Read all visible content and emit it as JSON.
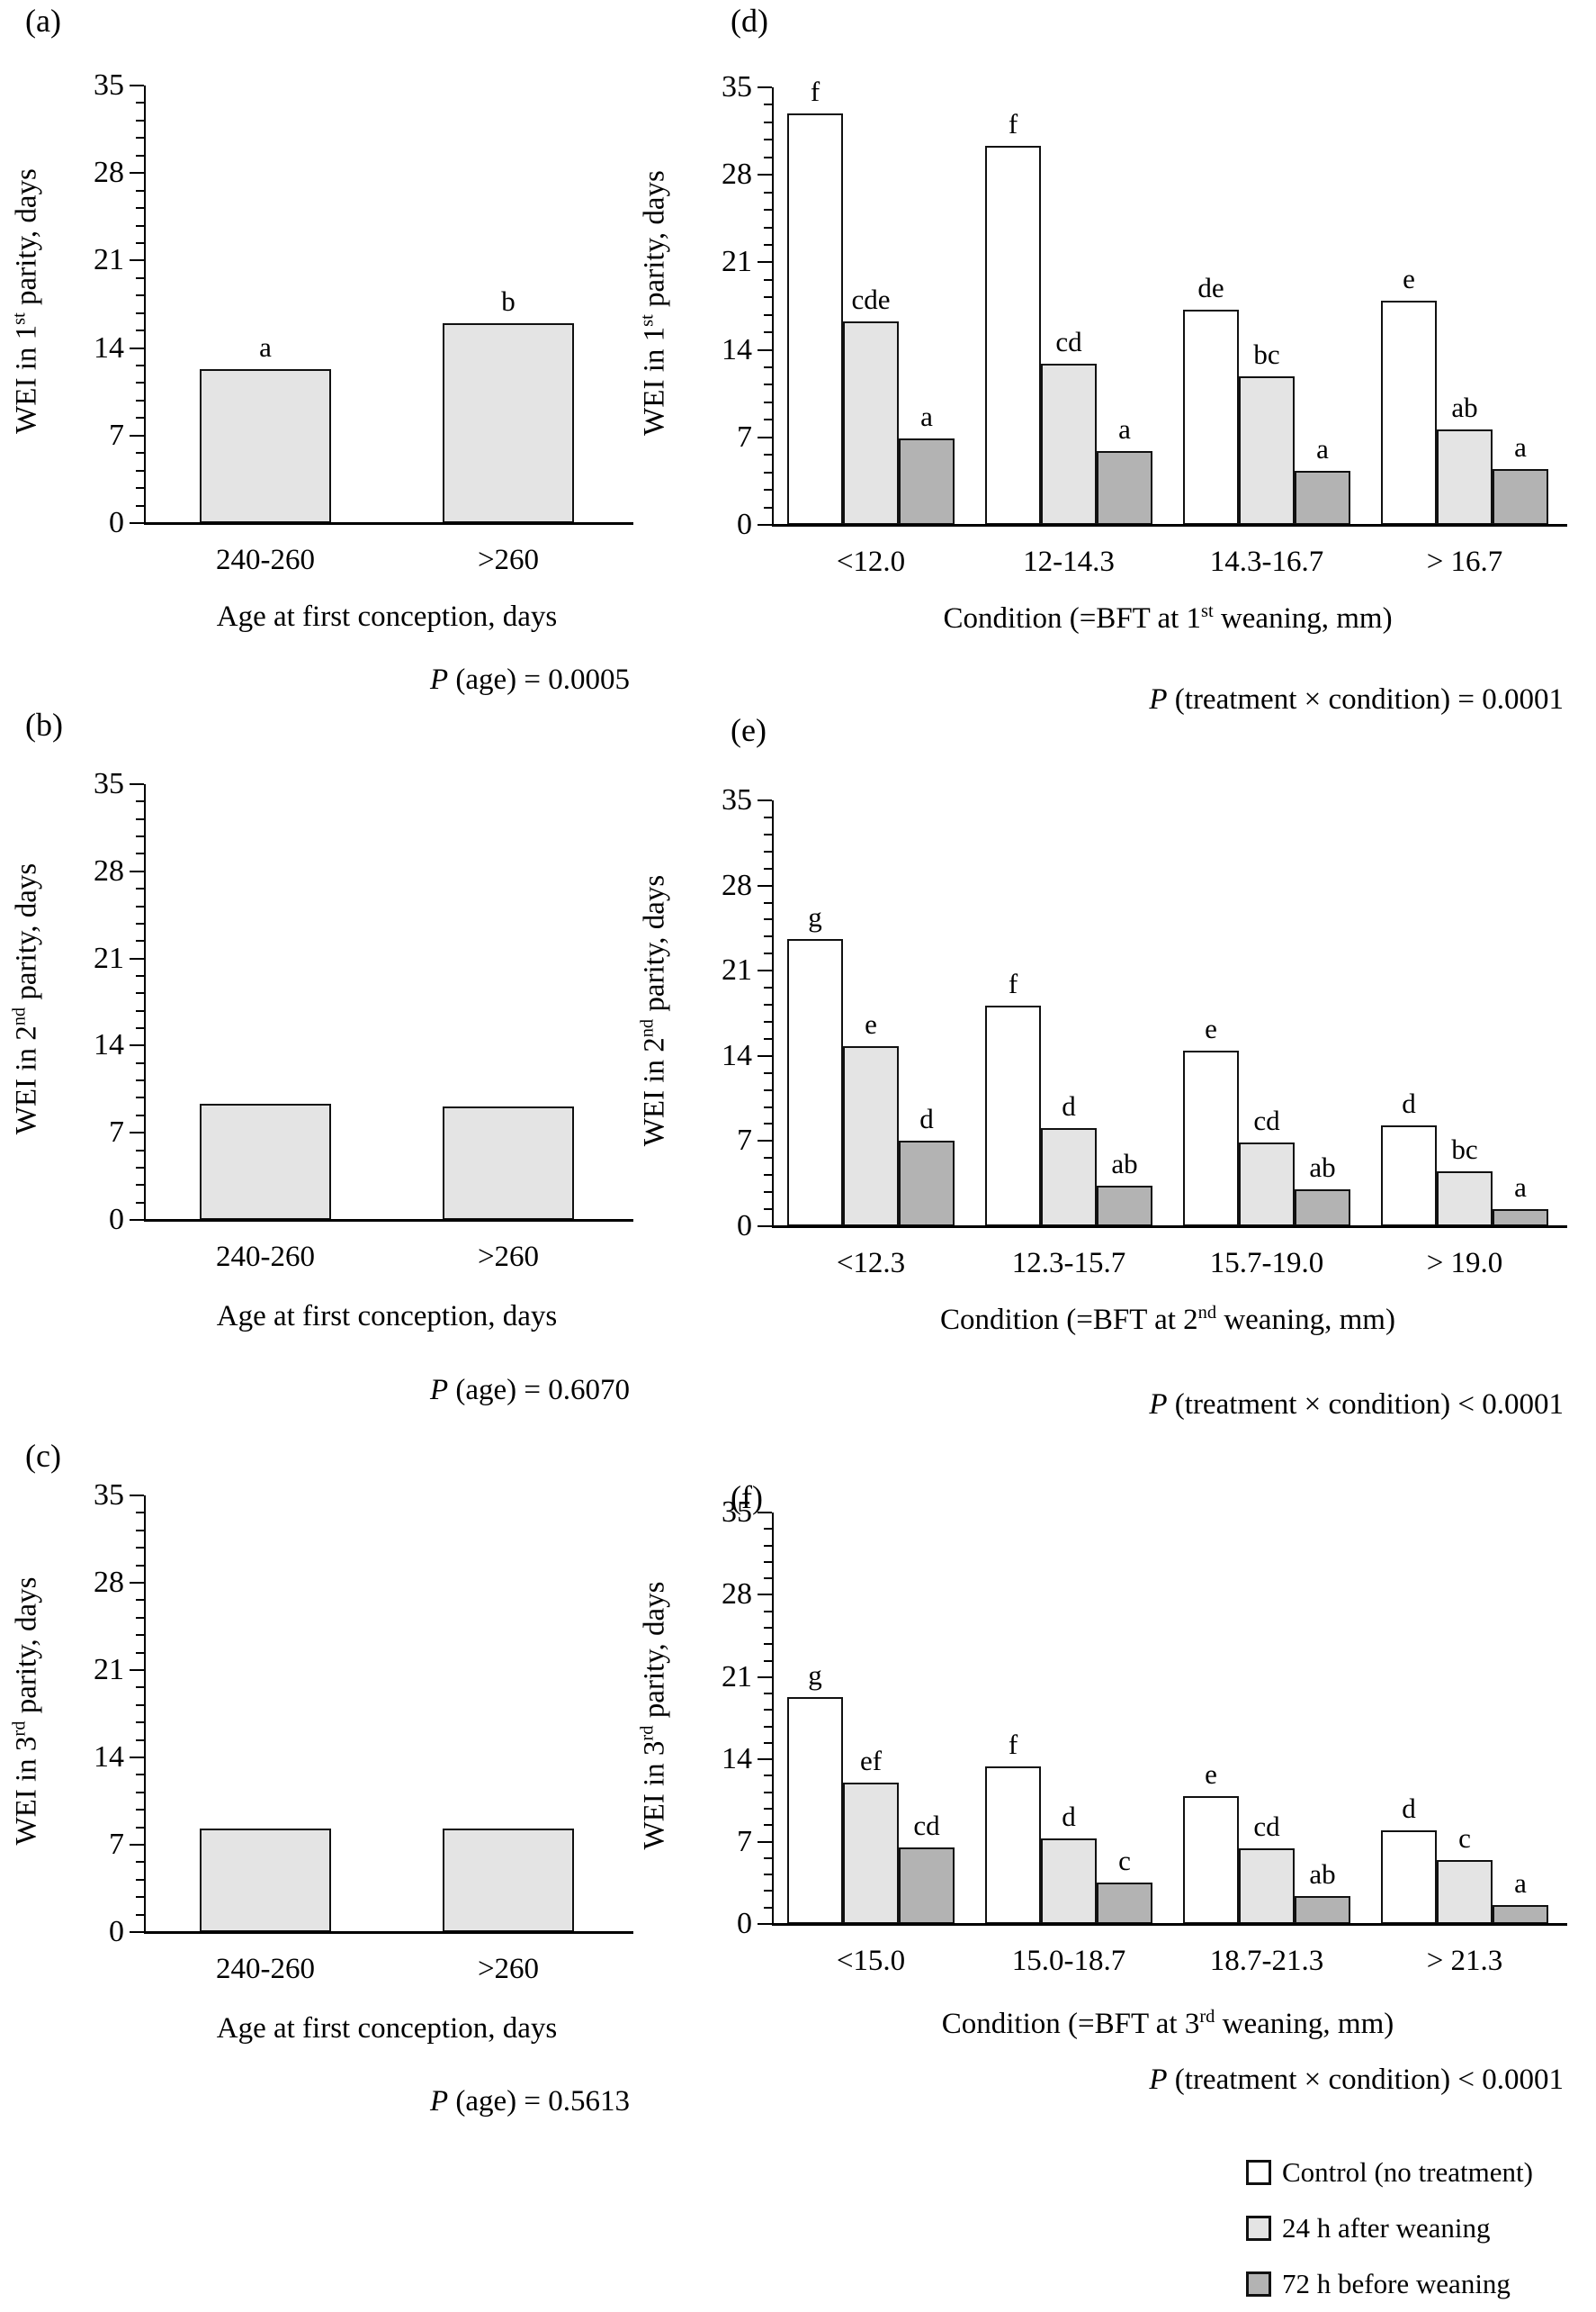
{
  "figure": {
    "ylim": [
      0,
      35
    ],
    "yticks": [
      0,
      7,
      14,
      21,
      28,
      35
    ],
    "minor_tick_step": 1.4,
    "grid": "off",
    "bar_border_color": "#111111",
    "single_bar_color": "#e4e4e4"
  },
  "legend": {
    "position": "bottom-right",
    "items": [
      {
        "label": "Control (no treatment)",
        "color": "#ffffff"
      },
      {
        "label": "24 h after weaning",
        "color": "#e4e4e4"
      },
      {
        "label": "72 h before weaning",
        "color": "#b3b3b3"
      }
    ]
  },
  "chart_data": [
    {
      "id": "a",
      "panel_label": "(a)",
      "type": "bar",
      "ylabel": "WEI in 1^{st} parity, days",
      "xlabel": "Age at first conception, days",
      "categories": [
        "240-260",
        ">260"
      ],
      "values": [
        12.3,
        16.0
      ],
      "bar_labels": [
        "a",
        "b"
      ],
      "p_text": "*P* (age) = 0.0005",
      "ylim": [
        0,
        35
      ]
    },
    {
      "id": "d",
      "panel_label": "(d)",
      "type": "grouped_bar",
      "ylabel": "WEI in 1^{st} parity, days",
      "xlabel": "Condition (=BFT at 1^{st} weaning,  mm)",
      "categories": [
        "<12.0",
        "12-14.3",
        "14.3-16.7",
        "> 16.7"
      ],
      "series": [
        {
          "name": "Control (no treatment)",
          "color": "#ffffff",
          "values": [
            32.9,
            30.3,
            17.2,
            17.9
          ],
          "labels": [
            "f",
            "f",
            "de",
            "e"
          ]
        },
        {
          "name": "24 h after weaning",
          "color": "#e4e4e4",
          "values": [
            16.3,
            12.9,
            11.9,
            7.6
          ],
          "labels": [
            "cde",
            "cd",
            "bc",
            "ab"
          ]
        },
        {
          "name": "72 h before weaning",
          "color": "#b3b3b3",
          "values": [
            6.9,
            5.9,
            4.3,
            4.5
          ],
          "labels": [
            "a",
            "a",
            "a",
            "a"
          ]
        }
      ],
      "p_text": "*P* (treatment × condition) = 0.0001",
      "ylim": [
        0,
        35
      ]
    },
    {
      "id": "b",
      "panel_label": "(b)",
      "type": "bar",
      "ylabel": "WEI in 2^{nd} parity, days",
      "xlabel": "Age at first conception, days",
      "categories": [
        "240-260",
        ">260"
      ],
      "values": [
        9.3,
        9.1
      ],
      "bar_labels": null,
      "p_text": "*P* (age) = 0.6070",
      "ylim": [
        0,
        35
      ]
    },
    {
      "id": "e",
      "panel_label": "(e)",
      "type": "grouped_bar",
      "ylabel": "WEI in 2^{nd} parity, days",
      "xlabel": "Condition (=BFT at 2^{nd} weaning,  mm)",
      "categories": [
        "<12.3",
        "12.3-15.7",
        "15.7-19.0",
        "> 19.0"
      ],
      "series": [
        {
          "name": "Control (no treatment)",
          "color": "#ffffff",
          "values": [
            23.6,
            18.1,
            14.4,
            8.3
          ],
          "labels": [
            "g",
            "f",
            "e",
            "d"
          ]
        },
        {
          "name": "24 h after weaning",
          "color": "#e4e4e4",
          "values": [
            14.8,
            8.1,
            6.9,
            4.5
          ],
          "labels": [
            "e",
            "d",
            "cd",
            "bc"
          ]
        },
        {
          "name": "72 h before weaning",
          "color": "#b3b3b3",
          "values": [
            7.0,
            3.3,
            3.0,
            1.4
          ],
          "labels": [
            "d",
            "ab",
            "ab",
            "a"
          ]
        }
      ],
      "p_text": "*P* (treatment × condition) < 0.0001",
      "ylim": [
        0,
        35
      ]
    },
    {
      "id": "c",
      "panel_label": "(c)",
      "type": "bar",
      "ylabel": "WEI in 3^{rd} parity, days",
      "xlabel": "Age at first conception, days",
      "categories": [
        "240-260",
        ">260"
      ],
      "values": [
        8.3,
        8.3
      ],
      "bar_labels": null,
      "p_text": "*P* (age) = 0.5613",
      "ylim": [
        0,
        35
      ]
    },
    {
      "id": "f",
      "panel_label": "(f)",
      "type": "grouped_bar",
      "ylabel": "WEI in 3^{rd} parity, days",
      "xlabel": "Condition (=BFT at 3^{rd} weaning,  mm)",
      "categories": [
        "<15.0",
        "15.0-18.7",
        "18.7-21.3",
        "> 21.3"
      ],
      "series": [
        {
          "name": "Control (no treatment)",
          "color": "#ffffff",
          "values": [
            19.3,
            13.4,
            10.9,
            8.0
          ],
          "labels": [
            "g",
            "f",
            "e",
            "d"
          ]
        },
        {
          "name": "24 h after weaning",
          "color": "#e4e4e4",
          "values": [
            12.0,
            7.3,
            6.4,
            5.4
          ],
          "labels": [
            "ef",
            "d",
            "cd",
            "c"
          ]
        },
        {
          "name": "72 h before weaning",
          "color": "#b3b3b3",
          "values": [
            6.5,
            3.5,
            2.4,
            1.6
          ],
          "labels": [
            "cd",
            "c",
            "ab",
            "a"
          ]
        }
      ],
      "p_text": "*P* (treatment × condition) < 0.0001",
      "ylim": [
        0,
        35
      ]
    }
  ]
}
